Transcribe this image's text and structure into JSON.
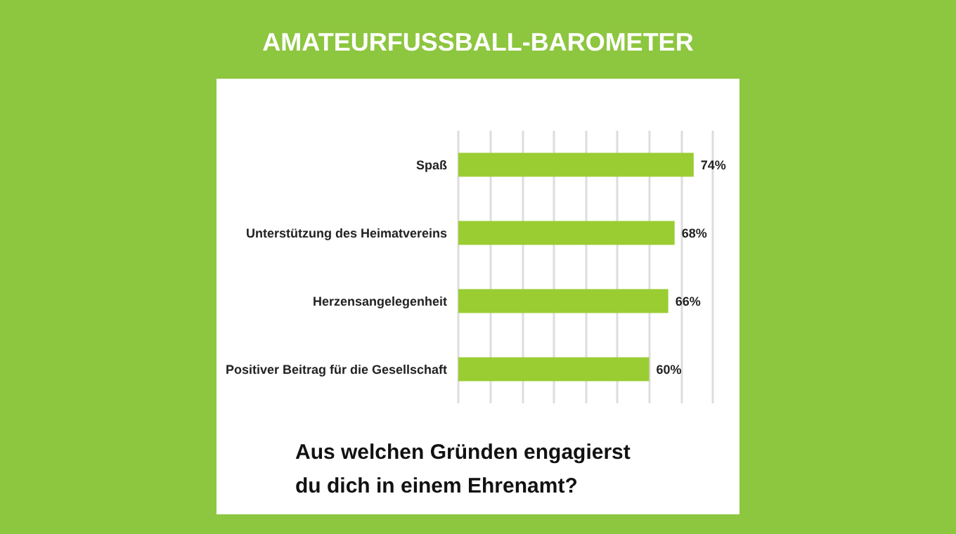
{
  "chart_data": {
    "type": "bar",
    "orientation": "horizontal",
    "title": "AMATEURFUSSBALL-BAROMETER",
    "categories": [
      "Spaß",
      "Unterstützung des Heimatvereins",
      "Herzensangelegenheit",
      "Positiver Beitrag für die Gesellschaft"
    ],
    "values": [
      74,
      68,
      66,
      60
    ],
    "value_labels": [
      "74%",
      "68%",
      "66%",
      "60%"
    ],
    "color": "#9acd32",
    "xlim": [
      0,
      80
    ],
    "xticks": [
      {
        "value": 0,
        "label": null
      },
      {
        "value": 10,
        "label": null
      },
      {
        "value": 20,
        "label": null
      },
      {
        "value": 30,
        "label": null
      },
      {
        "value": 40,
        "label": null
      },
      {
        "value": 50,
        "label": null
      },
      {
        "value": 60,
        "label": null
      },
      {
        "value": 70,
        "label": null
      },
      {
        "value": 80,
        "label": null
      }
    ],
    "tick_labels": "y",
    "grid": "x",
    "annotations": [
      "Aus welchen Gründen engagierst du dich in einem Ehrenamt?"
    ]
  }
}
